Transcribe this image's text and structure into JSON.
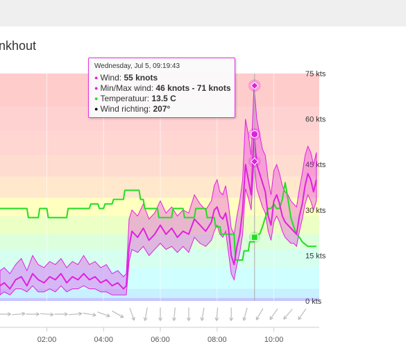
{
  "page": {
    "title": "nkhout"
  },
  "tooltip": {
    "timestamp": "Wednesday, Jul 5, 09:19:43",
    "wind_label": "Wind: ",
    "wind_value": "55 knots",
    "minmax_label": "Min/Max wind: ",
    "minmax_value": "46 knots - 71 knots",
    "temp_label": "Temperatuur: ",
    "temp_value": "13.5 C",
    "dir_label": "Wind richting: ",
    "dir_value": "207°",
    "colors": {
      "wind": "#e020e0",
      "temp": "#22dd22",
      "dir": "#000000"
    }
  },
  "chart_data": {
    "type": "line",
    "x_unit": "hours",
    "xlim": [
      0.35,
      11.6
    ],
    "ylim": [
      0,
      75
    ],
    "x_ticks": [
      {
        "value": 2,
        "label": "02:00"
      },
      {
        "value": 4,
        "label": "04:00"
      },
      {
        "value": 6,
        "label": "06:00"
      },
      {
        "value": 8,
        "label": "08:00"
      },
      {
        "value": 10,
        "label": "10:00"
      }
    ],
    "y_ticks": [
      {
        "value": 0,
        "label": "0 kts"
      },
      {
        "value": 15,
        "label": "15 kts"
      },
      {
        "value": 30,
        "label": "30 kts"
      },
      {
        "value": 45,
        "label": "45 kts"
      },
      {
        "value": 60,
        "label": "60 kts"
      },
      {
        "value": 75,
        "label": "75 kts"
      }
    ],
    "bands": [
      {
        "from": 0,
        "to": 1,
        "color": "#c6c6ff"
      },
      {
        "from": 1,
        "to": 4,
        "color": "#c8f0ff"
      },
      {
        "from": 4,
        "to": 11,
        "color": "#d0ffff"
      },
      {
        "from": 11,
        "to": 17,
        "color": "#d6fff0"
      },
      {
        "from": 17,
        "to": 22,
        "color": "#dcffdc"
      },
      {
        "from": 22,
        "to": 28,
        "color": "#ecffc4"
      },
      {
        "from": 28,
        "to": 34,
        "color": "#ffffc0"
      },
      {
        "from": 34,
        "to": 41,
        "color": "#ffe8cc"
      },
      {
        "from": 41,
        "to": 48,
        "color": "#ffdcd0"
      },
      {
        "from": 48,
        "to": 56,
        "color": "#ffd6d2"
      },
      {
        "from": 56,
        "to": 64,
        "color": "#ffd2d2"
      },
      {
        "from": 64,
        "to": 75,
        "color": "#ffcccc"
      }
    ],
    "series": [
      {
        "key": "wind",
        "color": "#e020e0",
        "x": [
          0.35,
          0.5,
          0.7,
          0.9,
          1.1,
          1.3,
          1.5,
          1.7,
          1.9,
          2.1,
          2.3,
          2.5,
          2.7,
          2.9,
          3.1,
          3.3,
          3.5,
          3.7,
          3.9,
          4.1,
          4.3,
          4.5,
          4.7,
          4.8,
          4.9,
          5.0,
          5.2,
          5.4,
          5.6,
          5.8,
          6.0,
          6.2,
          6.4,
          6.6,
          6.8,
          7.0,
          7.2,
          7.4,
          7.6,
          7.8,
          7.9,
          8.0,
          8.1,
          8.2,
          8.3,
          8.4,
          8.5,
          8.6,
          8.7,
          8.8,
          8.9,
          9.0,
          9.1,
          9.2,
          9.3,
          9.4,
          9.5,
          9.6,
          9.7,
          9.8,
          9.9,
          10.0,
          10.1,
          10.2,
          10.3,
          10.4,
          10.5,
          10.6,
          10.7,
          10.8,
          10.9,
          11.0,
          11.1,
          11.2,
          11.3,
          11.4,
          11.5
        ],
        "y": [
          5,
          6,
          4,
          7,
          8,
          5,
          9,
          7,
          6,
          8,
          7,
          9,
          6,
          8,
          7,
          9,
          7,
          8,
          6,
          7,
          5,
          6,
          4,
          5,
          18,
          23,
          21,
          24,
          20,
          22,
          25,
          22,
          24,
          21,
          23,
          22,
          27,
          25,
          23,
          26,
          30,
          31,
          28,
          27,
          29,
          24,
          15,
          12,
          18,
          22,
          30,
          45,
          40,
          35,
          55,
          45,
          42,
          39,
          36,
          28,
          25,
          33,
          35,
          32,
          28,
          26,
          25,
          24,
          23,
          22,
          28,
          32,
          38,
          42,
          40,
          36,
          40
        ]
      },
      {
        "key": "wind_min",
        "x": [
          0.35,
          0.5,
          0.7,
          0.9,
          1.1,
          1.3,
          1.5,
          1.7,
          1.9,
          2.1,
          2.3,
          2.5,
          2.7,
          2.9,
          3.1,
          3.3,
          3.5,
          3.7,
          3.9,
          4.1,
          4.3,
          4.5,
          4.7,
          4.8,
          4.9,
          5.0,
          5.2,
          5.4,
          5.6,
          5.8,
          6.0,
          6.2,
          6.4,
          6.6,
          6.8,
          7.0,
          7.2,
          7.4,
          7.6,
          7.8,
          7.9,
          8.0,
          8.1,
          8.2,
          8.3,
          8.4,
          8.5,
          8.6,
          8.7,
          8.8,
          8.9,
          9.0,
          9.1,
          9.2,
          9.3,
          9.4,
          9.5,
          9.6,
          9.7,
          9.8,
          9.9,
          10.0,
          10.1,
          10.2,
          10.3,
          10.4,
          10.5,
          10.6,
          10.7,
          10.8,
          10.9,
          11.0,
          11.1,
          11.2,
          11.3,
          11.4,
          11.5
        ],
        "y": [
          2,
          3,
          2,
          4,
          4,
          3,
          5,
          3,
          3,
          4,
          3,
          5,
          3,
          4,
          4,
          5,
          4,
          4,
          3,
          3,
          2,
          2,
          2,
          2,
          13,
          17,
          16,
          18,
          15,
          17,
          19,
          17,
          18,
          16,
          18,
          16,
          21,
          19,
          18,
          20,
          23,
          25,
          22,
          21,
          23,
          16,
          9,
          7,
          12,
          16,
          22,
          37,
          34,
          30,
          46,
          37,
          34,
          31,
          29,
          23,
          20,
          26,
          28,
          26,
          23,
          21,
          20,
          19,
          19,
          18,
          23,
          27,
          32,
          35,
          33,
          30,
          33
        ]
      },
      {
        "key": "wind_max",
        "x": [
          0.35,
          0.5,
          0.7,
          0.9,
          1.1,
          1.3,
          1.5,
          1.7,
          1.9,
          2.1,
          2.3,
          2.5,
          2.7,
          2.9,
          3.1,
          3.3,
          3.5,
          3.7,
          3.9,
          4.1,
          4.3,
          4.5,
          4.7,
          4.8,
          4.9,
          5.0,
          5.2,
          5.4,
          5.6,
          5.8,
          6.0,
          6.2,
          6.4,
          6.6,
          6.8,
          7.0,
          7.2,
          7.4,
          7.6,
          7.8,
          7.9,
          8.0,
          8.1,
          8.2,
          8.3,
          8.4,
          8.5,
          8.6,
          8.7,
          8.8,
          8.9,
          9.0,
          9.1,
          9.2,
          9.3,
          9.4,
          9.5,
          9.6,
          9.7,
          9.8,
          9.9,
          10.0,
          10.1,
          10.2,
          10.3,
          10.4,
          10.5,
          10.6,
          10.7,
          10.8,
          10.9,
          11.0,
          11.1,
          11.2,
          11.3,
          11.4,
          11.5
        ],
        "y": [
          10,
          11,
          9,
          12,
          14,
          10,
          15,
          12,
          11,
          13,
          12,
          14,
          11,
          13,
          12,
          15,
          12,
          13,
          11,
          12,
          9,
          10,
          8,
          9,
          27,
          30,
          28,
          32,
          27,
          29,
          33,
          29,
          31,
          28,
          30,
          29,
          35,
          32,
          30,
          33,
          38,
          40,
          36,
          35,
          38,
          32,
          24,
          22,
          28,
          33,
          40,
          60,
          55,
          48,
          71,
          60,
          55,
          50,
          48,
          40,
          35,
          43,
          45,
          42,
          38,
          36,
          35,
          33,
          32,
          31,
          37,
          42,
          48,
          51,
          49,
          45,
          49
        ]
      },
      {
        "key": "temp",
        "color": "#22dd22",
        "x": [
          0.35,
          1.3,
          1.35,
          1.7,
          1.75,
          2.0,
          2.05,
          2.7,
          2.75,
          3.5,
          3.55,
          3.8,
          3.85,
          4.0,
          4.05,
          4.3,
          4.35,
          4.7,
          4.75,
          5.25,
          5.3,
          5.4,
          5.45,
          5.9,
          5.95,
          6.4,
          6.45,
          6.8,
          6.85,
          7.2,
          7.25,
          7.6,
          7.65,
          7.9,
          7.95,
          8.1,
          8.15,
          8.6,
          8.65,
          8.9,
          8.95,
          9.1,
          9.15,
          9.3,
          9.4,
          9.5,
          9.6,
          9.7,
          9.8,
          9.9,
          10.0,
          10.1,
          10.2,
          10.3,
          10.4,
          10.5,
          10.6,
          10.7,
          10.8,
          10.9,
          11.0,
          11.2,
          11.4,
          11.5
        ],
        "y": [
          30.5,
          30.5,
          27.5,
          27.5,
          30.5,
          30.5,
          27.5,
          27.5,
          30.5,
          30.5,
          32,
          32,
          30.5,
          30.5,
          32,
          32,
          33.5,
          33.5,
          36.5,
          36.5,
          33.5,
          33.5,
          30.5,
          30.5,
          27.5,
          27.5,
          30.5,
          30.5,
          27.5,
          27.5,
          30.5,
          30.5,
          27.5,
          27.5,
          24.5,
          24.5,
          22,
          22,
          13.5,
          13.5,
          16.5,
          16.5,
          19.5,
          19.5,
          22,
          22,
          24.5,
          27.5,
          30.5,
          30.5,
          32,
          30.5,
          30.5,
          33.5,
          39,
          33.5,
          27.5,
          24.5,
          22,
          21,
          19.5,
          18,
          18,
          18
        ]
      }
    ],
    "hover": {
      "x": 9.32,
      "wind": 55,
      "min": 46,
      "max": 71,
      "temp": 13.5,
      "temp_marker": 21
    },
    "wind_directions": {
      "x": [
        0.5,
        1.0,
        1.5,
        2.0,
        2.5,
        3.0,
        3.5,
        4.0,
        4.5,
        5.0,
        5.5,
        6.0,
        6.5,
        7.0,
        7.5,
        8.0,
        8.5,
        9.0,
        9.5,
        10.0,
        10.5,
        11.0
      ],
      "deg": [
        270,
        265,
        270,
        275,
        270,
        265,
        280,
        290,
        300,
        340,
        10,
        0,
        5,
        0,
        10,
        5,
        0,
        15,
        30,
        35,
        40,
        35
      ]
    }
  }
}
